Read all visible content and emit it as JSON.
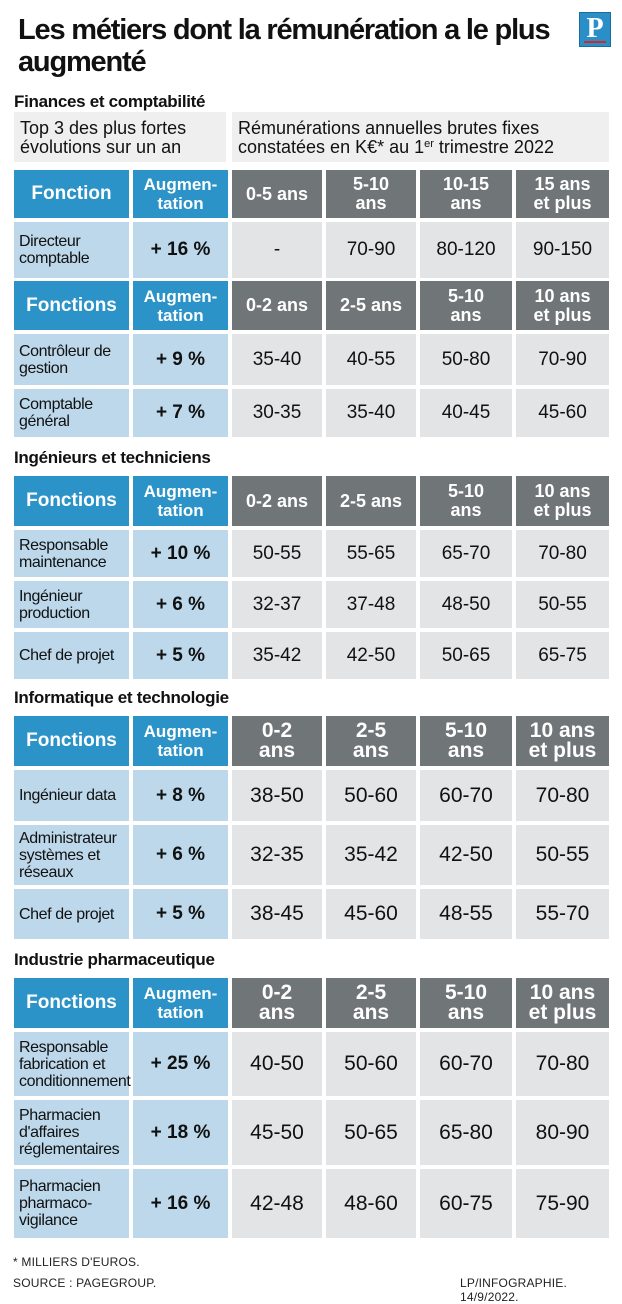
{
  "title": "Les métiers dont la rémunération a le plus augmenté",
  "logo": "P",
  "intro": {
    "left": "Top 3 des plus fortes évolutions sur un an",
    "right_prefix": "Rémunérations annuelles brutes fixes constatées en K€* au 1",
    "right_sup": "er",
    "right_suffix": " trimestre 2022"
  },
  "sections": [
    {
      "name": "Finances et comptabilité",
      "tables": [
        {
          "headers": [
            "Fonction",
            "Augmen-tation",
            "0-5 ans",
            "5-10 ans",
            "10-15 ans",
            "15 ans et plus"
          ],
          "rows": [
            [
              "Directeur comptable",
              "+ 16 %",
              "-",
              "70-90",
              "80-120",
              "90-150"
            ]
          ]
        },
        {
          "headers": [
            "Fonctions",
            "Augmen-tation",
            "0-2 ans",
            "2-5 ans",
            "5-10 ans",
            "10 ans et plus"
          ],
          "rows": [
            [
              "Contrôleur de gestion",
              "+ 9 %",
              "35-40",
              "40-55",
              "50-80",
              "70-90"
            ],
            [
              "Comptable général",
              "+ 7 %",
              "30-35",
              "35-40",
              "40-45",
              "45-60"
            ]
          ]
        }
      ]
    },
    {
      "name": "Ingénieurs et techniciens",
      "tables": [
        {
          "headers": [
            "Fonctions",
            "Augmen-tation",
            "0-2 ans",
            "2-5 ans",
            "5-10 ans",
            "10 ans et plus"
          ],
          "rows": [
            [
              "Responsable maintenance",
              "+ 10 %",
              "50-55",
              "55-65",
              "65-70",
              "70-80"
            ],
            [
              "Ingénieur production",
              "+ 6 %",
              "32-37",
              "37-48",
              "48-50",
              "50-55"
            ],
            [
              "Chef de projet",
              "+ 5 %",
              "35-42",
              "42-50",
              "50-65",
              "65-75"
            ]
          ]
        }
      ]
    },
    {
      "name": "Informatique et technologie",
      "tables": [
        {
          "headers": [
            "Fonctions",
            "Augmen-tation",
            "0-2 ans",
            "2-5 ans",
            "5-10 ans",
            "10 ans et plus"
          ],
          "rows": [
            [
              "Ingénieur data",
              "+ 8 %",
              "38-50",
              "50-60",
              "60-70",
              "70-80"
            ],
            [
              "Administrateur systèmes et réseaux",
              "+ 6 %",
              "32-35",
              "35-42",
              "42-50",
              "50-55"
            ],
            [
              "Chef de projet",
              "+ 5 %",
              "38-45",
              "45-60",
              "48-55",
              "55-70"
            ]
          ]
        }
      ]
    },
    {
      "name": "Industrie pharmaceutique",
      "tables": [
        {
          "headers": [
            "Fonctions",
            "Augmen-tation",
            "0-2 ans",
            "2-5 ans",
            "5-10 ans",
            "10 ans et plus"
          ],
          "rows": [
            [
              "Responsable fabrication et conditionnement",
              "+ 25 %",
              "40-50",
              "50-60",
              "60-70",
              "70-80"
            ],
            [
              "Pharmacien d'affaires réglementaires",
              "+ 18 %",
              "45-50",
              "50-65",
              "65-80",
              "80-90"
            ],
            [
              "Pharmacien pharmaco-vigilance",
              "+ 16 %",
              "42-48",
              "48-60",
              "60-75",
              "75-90"
            ]
          ]
        }
      ]
    }
  ],
  "footnote": "* MILLIERS D'EUROS.",
  "source": "SOURCE : PAGEGROUP.",
  "credit": "LP/INFOGRAPHIE.  14/9/2022.",
  "colors": {
    "blue_header": "#2b93c8",
    "light_blue": "#bcd8ea",
    "grey_header": "#707577",
    "grey_cell": "#e3e4e5"
  }
}
